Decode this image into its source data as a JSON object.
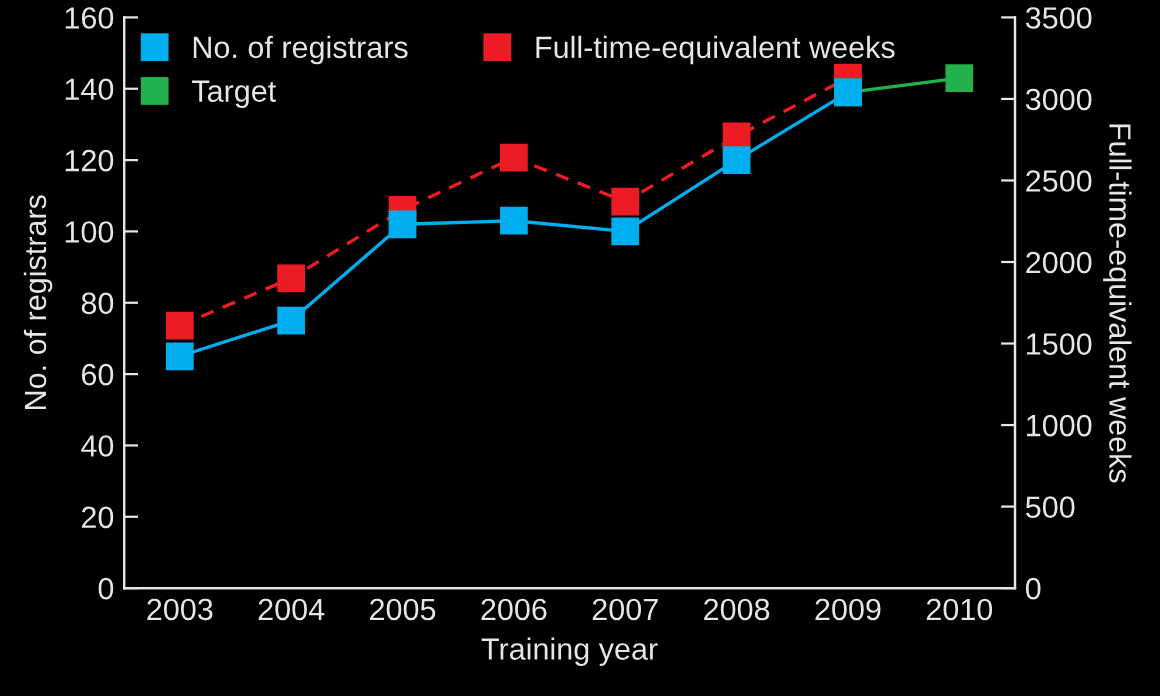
{
  "chart_data": {
    "type": "line",
    "categories": [
      "2003",
      "2004",
      "2005",
      "2006",
      "2007",
      "2008",
      "2009",
      "2010"
    ],
    "xlabel": "Training year",
    "ylabel": "No. of registrars",
    "y2label": "Full-time-equivalent weeks",
    "ylim": [
      0,
      160
    ],
    "yticks": [
      0,
      20,
      40,
      60,
      80,
      100,
      120,
      140,
      160
    ],
    "y2lim": [
      0,
      3500
    ],
    "y2ticks": [
      0,
      500,
      1000,
      1500,
      2000,
      2500,
      3000,
      3500
    ],
    "marker": "square",
    "grid": false,
    "legend": "top left",
    "series": [
      {
        "name": "Target",
        "color": "#22b14c",
        "line_style": "solid",
        "values": [
          null,
          null,
          null,
          null,
          null,
          null,
          139,
          143
        ]
      },
      {
        "name": "Full-time-equivalent weeks",
        "color": "#ed1c24",
        "line_style": "dashed",
        "axis": "y2",
        "values": [
          1610,
          1900,
          2320,
          2640,
          2370,
          2770,
          3130,
          null
        ]
      },
      {
        "name": "No. of registrars",
        "color": "#00aeef",
        "line_style": "solid",
        "values": [
          65,
          75,
          102,
          103,
          100,
          120,
          139,
          null
        ]
      }
    ]
  }
}
